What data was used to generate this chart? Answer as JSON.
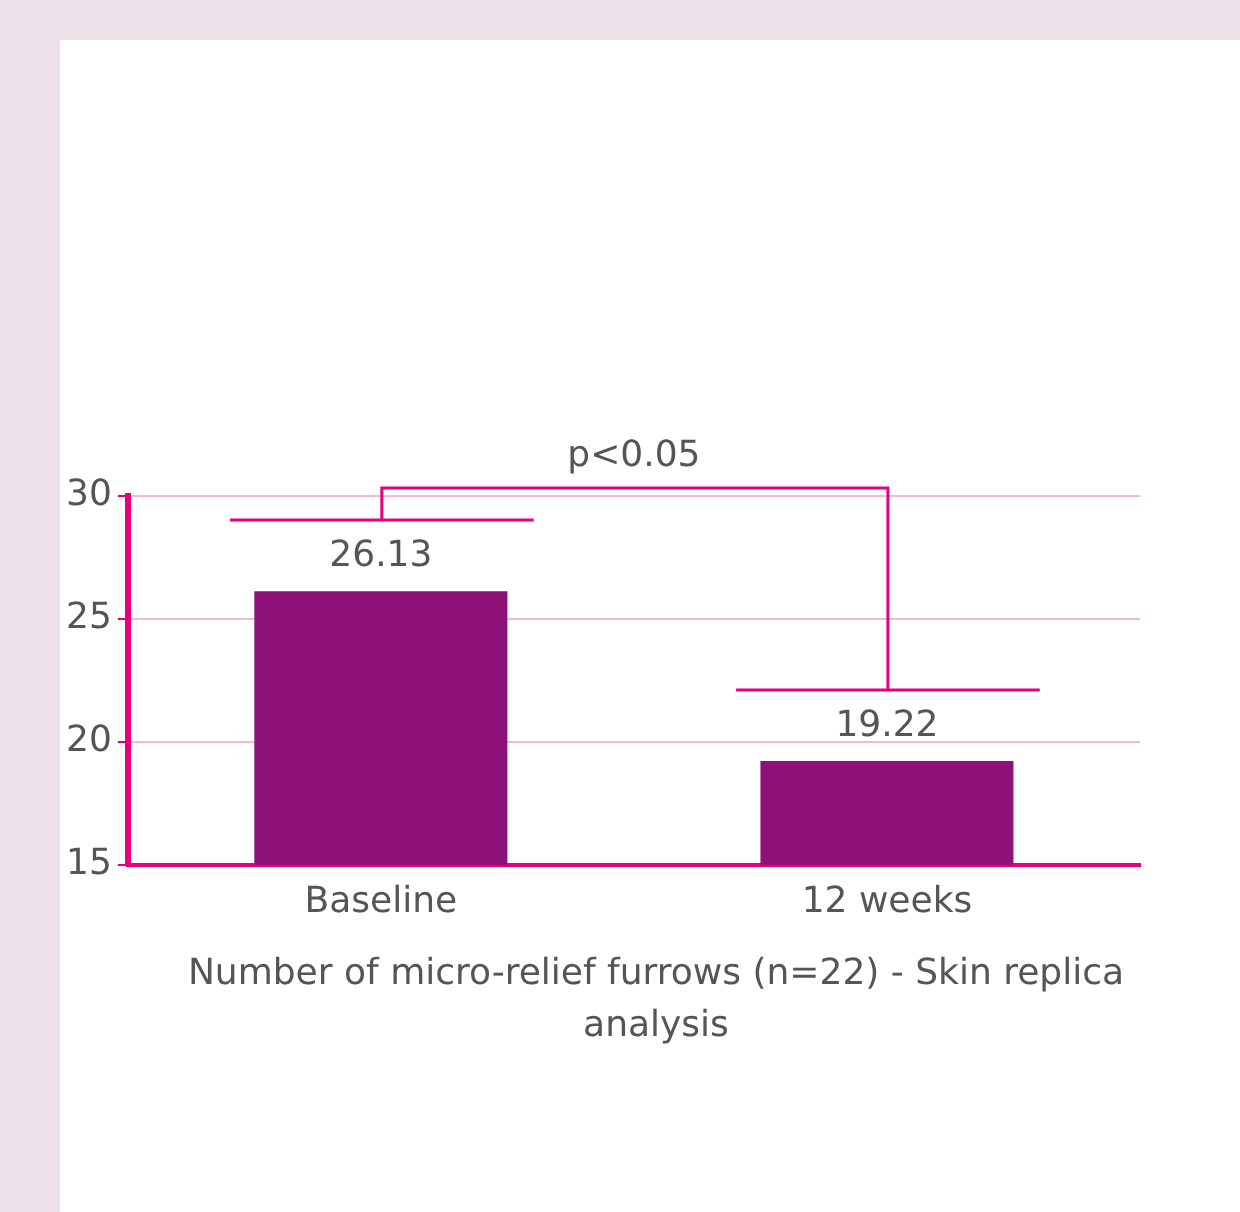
{
  "chart_data": {
    "type": "bar",
    "xlabel": "Number of micro-relief furrows (n=22) - Skin replica analysis",
    "categories": [
      "Baseline",
      "12 weeks"
    ],
    "series": [
      {
        "color": "#8e1079",
        "values": [
          26.13,
          19.22
        ]
      }
    ],
    "ylim": [
      15,
      30
    ],
    "yticks": [
      15,
      20,
      25,
      30
    ],
    "grid": "y",
    "data_labels": true,
    "annotations": [
      "p<0.05"
    ]
  }
}
